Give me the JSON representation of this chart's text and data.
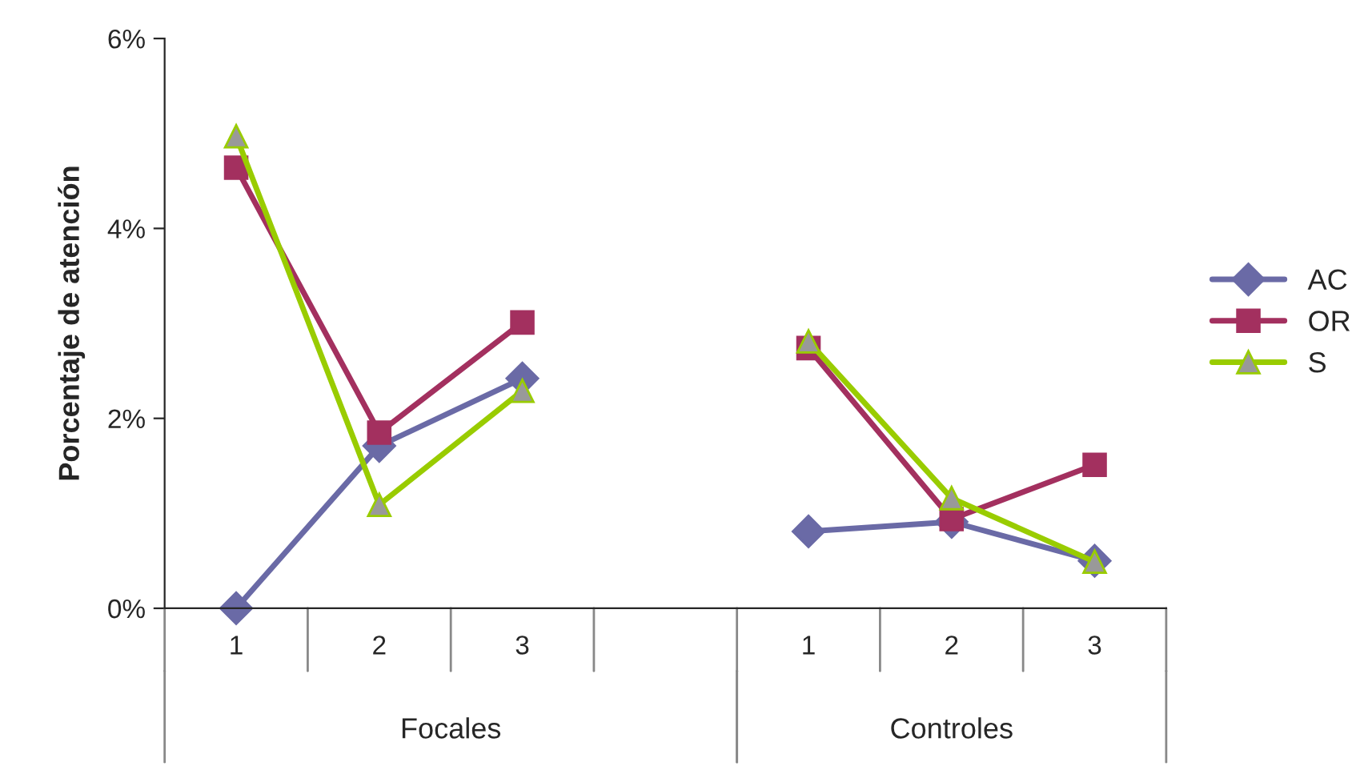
{
  "chart_data": {
    "type": "line",
    "ylabel": "Porcentaje de atención",
    "categories": [
      "1",
      "2",
      "3",
      null,
      "1",
      "2",
      "3"
    ],
    "series": [
      {
        "name": "AC",
        "color": "#6a6aa6",
        "marker": "diamond",
        "values": [
          0,
          1.71,
          2.42,
          null,
          0.81,
          0.91,
          0.5
        ]
      },
      {
        "name": "OR",
        "color": "#a3305f",
        "marker": "square",
        "values": [
          4.64,
          1.85,
          3.01,
          null,
          2.74,
          0.94,
          1.51
        ]
      },
      {
        "name": "S",
        "color": "#99cc00",
        "marker": "triangle",
        "values": [
          4.97,
          1.09,
          2.29,
          null,
          2.81,
          1.16,
          0.49
        ]
      }
    ],
    "ylim": [
      0,
      6
    ],
    "yticks": [
      {
        "value": 0,
        "label": "0%"
      },
      {
        "value": 2,
        "label": "2%"
      },
      {
        "value": 4,
        "label": "4%"
      },
      {
        "value": 6,
        "label": "6%"
      }
    ],
    "grid": false,
    "legend": "right",
    "line_style": "solid",
    "annotations": [
      "Focales",
      "Controles"
    ]
  }
}
